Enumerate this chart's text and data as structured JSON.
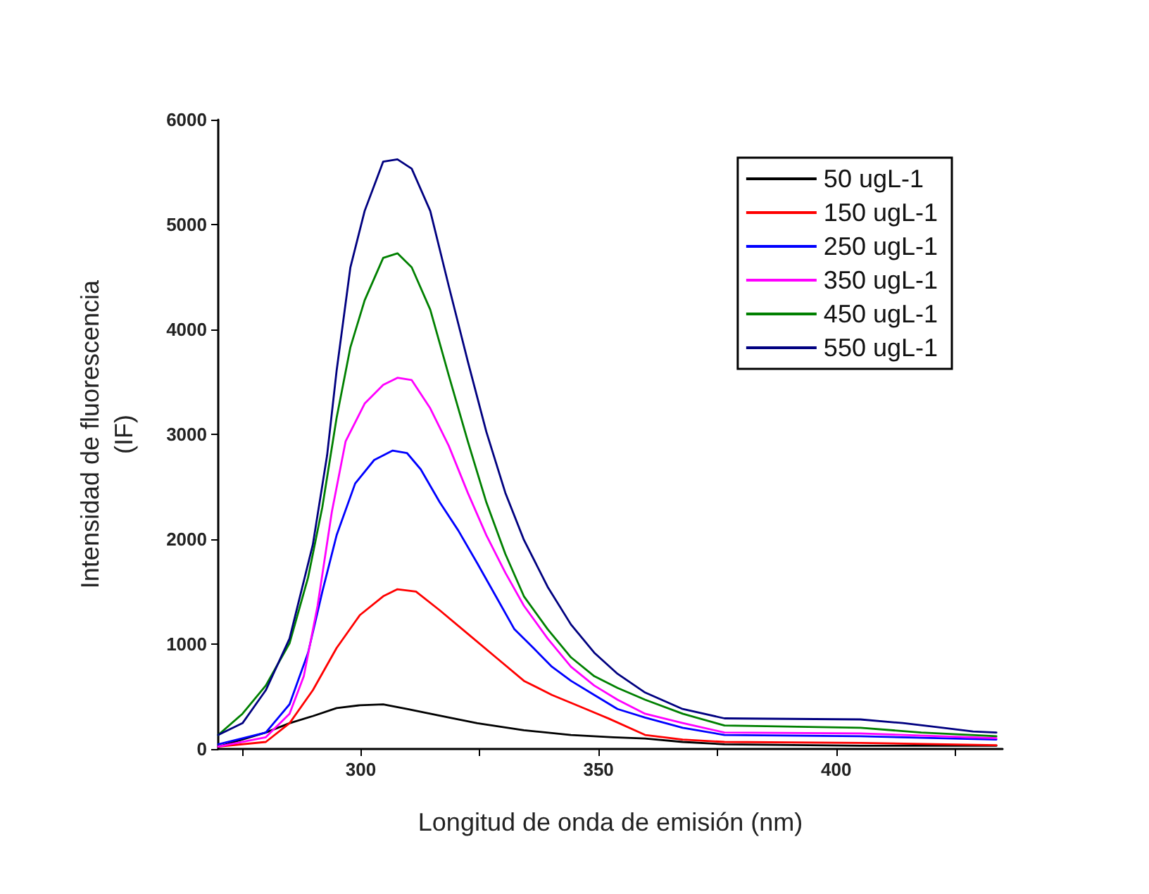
{
  "chart_data": {
    "type": "line",
    "xlabel": "Longitud de onda de emisión (nm)",
    "ylabel": "Intensidad de fluorescencia\n(IF)",
    "xlim": [
      270,
      435
    ],
    "ylim": [
      0,
      6000
    ],
    "xticks": [
      {
        "value": 275,
        "label": null
      },
      300,
      {
        "value": 325,
        "label": null
      },
      350,
      {
        "value": 375,
        "label": null
      },
      400,
      {
        "value": 425,
        "label": null
      }
    ],
    "yticks": [
      0,
      1000,
      2000,
      3000,
      4000,
      5000,
      6000
    ],
    "grid": false,
    "legend": "top right",
    "marker": "none",
    "line_style": "solid",
    "series": [
      {
        "name": "50 ugL-1",
        "color": "#000000",
        "x": [
          270,
          280,
          285,
          289.9,
          294.9,
          299.8,
          304.7,
          309.7,
          314.6,
          324.5,
          334.3,
          344.2,
          353.1,
          359.8,
          367.7,
          376.5,
          405.1,
          433.7
        ],
        "values": [
          22,
          157,
          246,
          314,
          390,
          417,
          426,
          381,
          336,
          246,
          179,
          134,
          112,
          100,
          67,
          45,
          31,
          31
        ]
      },
      {
        "name": "150 ugL-1",
        "color": "#ff0000",
        "x": [
          270,
          280,
          285,
          289.9,
          294.9,
          299.8,
          304.7,
          307.7,
          311.6,
          316.6,
          322.5,
          328.4,
          334.3,
          340.2,
          346.2,
          352.1,
          359.8,
          367.7,
          376.5,
          405.1,
          433.7
        ],
        "values": [
          22,
          67,
          246,
          560,
          963,
          1277,
          1456,
          1523,
          1501,
          1322,
          1098,
          874,
          650,
          515,
          403,
          291,
          134,
          90,
          67,
          58,
          36
        ]
      },
      {
        "name": "250 ugL-1",
        "color": "#0000ff",
        "x": [
          270,
          280,
          285,
          288.9,
          291.9,
          294.9,
          298.8,
          302.8,
          306.7,
          309.7,
          312.6,
          316.6,
          320.5,
          324.5,
          328.4,
          332.3,
          336.3,
          340.2,
          344.2,
          349.1,
          354,
          359.8,
          367.7,
          376.5,
          405.1,
          433.7
        ],
        "values": [
          45,
          157,
          426,
          918,
          1501,
          2038,
          2531,
          2755,
          2845,
          2822,
          2666,
          2352,
          2083,
          1770,
          1456,
          1142,
          963,
          784,
          650,
          515,
          381,
          300,
          202,
          134,
          121,
          90
        ]
      },
      {
        "name": "350 ugL-1",
        "color": "#ff00ff",
        "x": [
          270,
          280,
          285,
          288,
          290.9,
          293.9,
          296.8,
          300.8,
          304.7,
          307.7,
          310.7,
          314.6,
          318.5,
          322.5,
          326.4,
          330.4,
          334.3,
          339.3,
          344.2,
          349.1,
          354,
          359.8,
          367.7,
          376.5,
          405.1,
          433.7
        ],
        "values": [
          22,
          112,
          336,
          694,
          1366,
          2262,
          2934,
          3293,
          3472,
          3539,
          3517,
          3248,
          2890,
          2442,
          2038,
          1680,
          1366,
          1053,
          784,
          605,
          470,
          336,
          247,
          157,
          148,
          103
        ]
      },
      {
        "name": "450 ugL-1",
        "color": "#008000",
        "x": [
          270,
          275.1,
          280,
          285,
          288.9,
          291.9,
          294.9,
          297.8,
          300.8,
          304.7,
          307.7,
          310.7,
          314.6,
          318.5,
          322.5,
          326.4,
          330.4,
          334.3,
          339.3,
          344.2,
          349.1,
          354,
          359.8,
          367.7,
          376.5,
          405.1,
          417.9,
          433.7
        ],
        "values": [
          134,
          336,
          605,
          1008,
          1635,
          2307,
          3158,
          3830,
          4278,
          4682,
          4726,
          4592,
          4189,
          3562,
          2934,
          2352,
          1859,
          1456,
          1142,
          874,
          694,
          582,
          470,
          336,
          224,
          202,
          157,
          121
        ]
      },
      {
        "name": "550 ugL-1",
        "color": "#000080",
        "x": [
          270,
          275.1,
          280,
          285,
          289.9,
          292.9,
          294.9,
          297.8,
          300.8,
          304.7,
          307.7,
          310.7,
          314.6,
          318.5,
          322.5,
          326.4,
          330.4,
          334.3,
          339.3,
          344.2,
          349.1,
          354,
          359.8,
          367.7,
          376.5,
          405.1,
          414,
          420.9,
          428.8,
          433.7
        ],
        "values": [
          134,
          246,
          560,
          1053,
          1949,
          2800,
          3606,
          4592,
          5130,
          5600,
          5622,
          5533,
          5130,
          4413,
          3696,
          3024,
          2442,
          1994,
          1546,
          1187,
          918,
          717,
          538,
          381,
          292,
          282,
          247,
          211,
          167,
          157
        ]
      }
    ]
  }
}
